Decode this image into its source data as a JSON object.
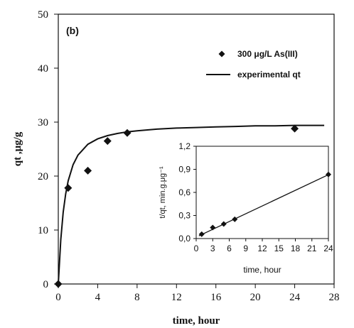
{
  "panel_label": "(b)",
  "chart_data": [
    {
      "type": "scatter",
      "panel": "main",
      "xlabel": "time, hour",
      "ylabel": "qt ,μg/g",
      "xlim": [
        0,
        28
      ],
      "ylim": [
        0,
        50
      ],
      "xticks": [
        "0",
        "4",
        "8",
        "12",
        "16",
        "20",
        "24",
        "28"
      ],
      "yticks": [
        "0",
        "10",
        "20",
        "30",
        "40",
        "50"
      ],
      "legend_position": "top-right",
      "series": [
        {
          "name": "300 μg/L As(III)",
          "kind": "markers",
          "marker": "diamond",
          "x": [
            0,
            1,
            3,
            5,
            7,
            24
          ],
          "y": [
            0,
            17.8,
            21.0,
            26.5,
            28.0,
            28.8
          ]
        },
        {
          "name": "experimental qt",
          "kind": "line",
          "x": [
            0,
            0.25,
            0.5,
            0.75,
            1,
            1.5,
            2,
            3,
            4,
            5,
            6,
            7,
            8,
            10,
            12,
            14,
            16,
            18,
            20,
            22,
            24,
            26,
            27
          ],
          "y": [
            0,
            8.2,
            13.3,
            16.7,
            19.1,
            22.1,
            23.9,
            25.9,
            26.9,
            27.5,
            27.9,
            28.2,
            28.4,
            28.7,
            28.9,
            29.0,
            29.1,
            29.2,
            29.3,
            29.3,
            29.4,
            29.4,
            29.4
          ]
        }
      ]
    },
    {
      "type": "scatter",
      "panel": "inset",
      "xlabel": "time, hour",
      "ylabel": "t/qt, min.g.μg⁻¹",
      "xlim": [
        0,
        24
      ],
      "ylim": [
        0,
        1.2
      ],
      "xticks": [
        "0",
        "3",
        "6",
        "9",
        "12",
        "15",
        "18",
        "21",
        "24"
      ],
      "yticks": [
        "0,0",
        "0,3",
        "0,6",
        "0,9",
        "1,2"
      ],
      "series": [
        {
          "kind": "markers",
          "marker": "diamond",
          "x": [
            1,
            3,
            5,
            7,
            24
          ],
          "y": [
            0.056,
            0.143,
            0.189,
            0.25,
            0.833
          ]
        },
        {
          "kind": "line",
          "x": [
            0.5,
            24
          ],
          "y": [
            0.035,
            0.83
          ]
        }
      ]
    }
  ]
}
